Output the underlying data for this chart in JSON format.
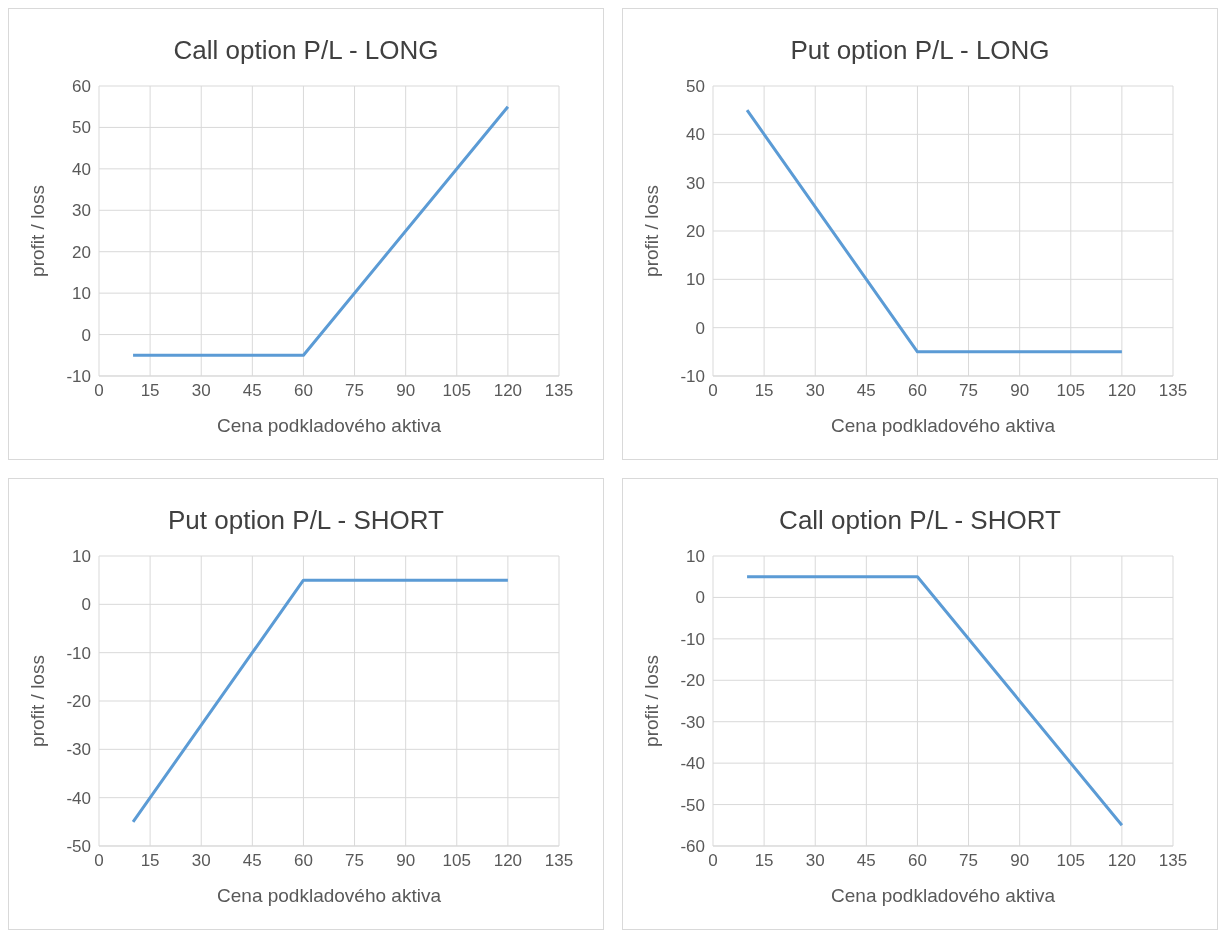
{
  "chart_data": [
    {
      "type": "line",
      "title": "Call option P/L - LONG",
      "xlabel": "Cena podkladového aktiva",
      "ylabel": "profit / loss",
      "x": [
        10,
        60,
        120
      ],
      "values": [
        -5,
        -5,
        55
      ],
      "color": "#5b9bd5",
      "xlim": [
        0,
        135
      ],
      "xticks": [
        0,
        15,
        30,
        45,
        60,
        75,
        90,
        105,
        120,
        135
      ],
      "ylim": [
        -10,
        60
      ],
      "yticks": [
        -10,
        0,
        10,
        20,
        30,
        40,
        50,
        60
      ],
      "grid": true,
      "marker": "none",
      "legend": false
    },
    {
      "type": "line",
      "title": "Put option P/L - LONG",
      "xlabel": "Cena podkladového aktiva",
      "ylabel": "profit / loss",
      "x": [
        10,
        60,
        120
      ],
      "values": [
        45,
        -5,
        -5
      ],
      "color": "#5b9bd5",
      "xlim": [
        0,
        135
      ],
      "xticks": [
        0,
        15,
        30,
        45,
        60,
        75,
        90,
        105,
        120,
        135
      ],
      "ylim": [
        -10,
        50
      ],
      "yticks": [
        -10,
        0,
        10,
        20,
        30,
        40,
        50
      ],
      "grid": true,
      "marker": "none",
      "legend": false
    },
    {
      "type": "line",
      "title": "Put option P/L - SHORT",
      "xlabel": "Cena podkladového aktiva",
      "ylabel": "profit / loss",
      "x": [
        10,
        60,
        120
      ],
      "values": [
        -45,
        5,
        5
      ],
      "color": "#5b9bd5",
      "xlim": [
        0,
        135
      ],
      "xticks": [
        0,
        15,
        30,
        45,
        60,
        75,
        90,
        105,
        120,
        135
      ],
      "ylim": [
        -50,
        10
      ],
      "yticks": [
        -50,
        -40,
        -30,
        -20,
        -10,
        0,
        10
      ],
      "grid": true,
      "marker": "none",
      "legend": false
    },
    {
      "type": "line",
      "title": "Call option P/L - SHORT",
      "xlabel": "Cena podkladového aktiva",
      "ylabel": "profit / loss",
      "x": [
        10,
        60,
        120
      ],
      "values": [
        5,
        5,
        -55
      ],
      "color": "#5b9bd5",
      "xlim": [
        0,
        135
      ],
      "xticks": [
        0,
        15,
        30,
        45,
        60,
        75,
        90,
        105,
        120,
        135
      ],
      "ylim": [
        -60,
        10
      ],
      "yticks": [
        -60,
        -50,
        -40,
        -30,
        -20,
        -10,
        0,
        10
      ],
      "grid": true,
      "marker": "none",
      "legend": false
    }
  ]
}
